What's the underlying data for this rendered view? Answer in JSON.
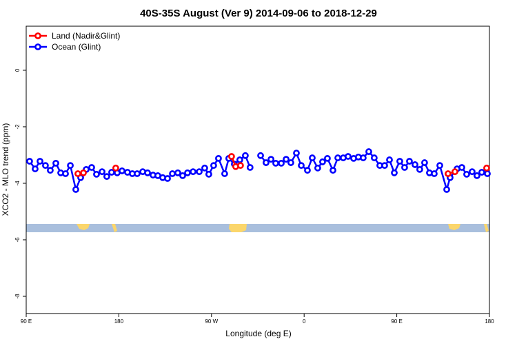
{
  "chart_data": {
    "type": "line",
    "title": "40S-35S August (Ver 9)   2014-09-06 to 2018-12-29",
    "x_label": "Longitude (deg E)",
    "y_label": "XCO2 - MLO trend (ppm)",
    "xlim": [
      90,
      540
    ],
    "xticks": [
      {
        "value": 90,
        "label": "90 E"
      },
      180,
      {
        "value": 270,
        "label": "90 W"
      },
      {
        "value": 360,
        "label": "0"
      },
      {
        "value": 450,
        "label": "90 E"
      },
      {
        "value": 540,
        "label": "180"
      }
    ],
    "ylim": [
      -8.61,
      1.56
    ],
    "yticks": [
      0,
      -2,
      -4,
      -6,
      -8
    ],
    "grid": false,
    "legend": "top-left",
    "series": [
      {
        "name": "Ocean (Glint)",
        "color": "#0000ff",
        "x": [
          93.3,
          98.7,
          103.4,
          108.7,
          113.4,
          118.8,
          123.5,
          128.2,
          132.9,
          138.2,
          142.9,
          148.3,
          153.6,
          158.3,
          163.7,
          168.3,
          173.0,
          178.4,
          183.1,
          188.4,
          193.1,
          197.8,
          203.2,
          207.9,
          213.2,
          217.9,
          222.6,
          227.3,
          232.0,
          237.3,
          242.0,
          246.7,
          252.1,
          258.1,
          263.4,
          267.4,
          272.1,
          276.8,
          282.8,
          286.8,
          292.2,
          297.5,
          302.9,
          307.5,
          312.5,
          317.7,
          323.0,
          327.8,
          332.4,
          337.8,
          342.5,
          347.1,
          352.5,
          357.2,
          363.2,
          367.9,
          373.2,
          377.9,
          382.6,
          388.0,
          392.7,
          398.0,
          402.7,
          408.1,
          412.7,
          417.4,
          422.8,
          428.1,
          433.5,
          438.2,
          442.9,
          447.6,
          452.9,
          457.6,
          462.3,
          467.7,
          472.3,
          477.0,
          481.7,
          486.4,
          491.8,
          498.5,
          501.8,
          508.5,
          513.2,
          517.9,
          523.2,
          527.9,
          532.6,
          538.0
        ],
        "values": [
          -3.22,
          -3.49,
          -3.22,
          -3.37,
          -3.54,
          -3.29,
          -3.63,
          -3.66,
          -3.37,
          -4.22,
          -3.8,
          -3.51,
          -3.44,
          -3.68,
          -3.59,
          -3.76,
          -3.61,
          -3.63,
          -3.56,
          -3.61,
          -3.66,
          -3.66,
          -3.59,
          -3.63,
          -3.71,
          -3.73,
          -3.8,
          -3.83,
          -3.66,
          -3.63,
          -3.73,
          -3.63,
          -3.59,
          -3.59,
          -3.46,
          -3.68,
          -3.37,
          -3.12,
          -3.66,
          -3.12,
          -3.32,
          -3.17,
          -3.02,
          -3.44,
          null,
          -3.02,
          -3.27,
          -3.15,
          -3.29,
          -3.29,
          -3.15,
          -3.27,
          -2.93,
          -3.37,
          -3.54,
          -3.1,
          -3.46,
          -3.24,
          -3.12,
          -3.54,
          -3.1,
          -3.1,
          -3.05,
          -3.12,
          -3.07,
          -3.1,
          -2.88,
          -3.1,
          -3.37,
          -3.37,
          -3.17,
          -3.63,
          -3.22,
          -3.44,
          -3.22,
          -3.34,
          -3.51,
          -3.27,
          -3.63,
          -3.66,
          -3.37,
          -4.22,
          -3.8,
          -3.49,
          -3.44,
          -3.68,
          -3.59,
          -3.73,
          -3.61,
          -3.66
        ]
      },
      {
        "name": "Land (Nadir&Glint)",
        "color": "#ff0000",
        "x": [
          140.2,
          145.6,
          160.0,
          177.0,
          230.0,
          289.5,
          293.5,
          298.2,
          400.0,
          499.8,
          506.5,
          520.0,
          537.3
        ],
        "values": [
          -3.66,
          -3.63,
          null,
          -3.46,
          null,
          -3.05,
          -3.41,
          -3.37,
          null,
          -3.66,
          -3.59,
          null,
          -3.46
        ]
      }
    ]
  }
}
